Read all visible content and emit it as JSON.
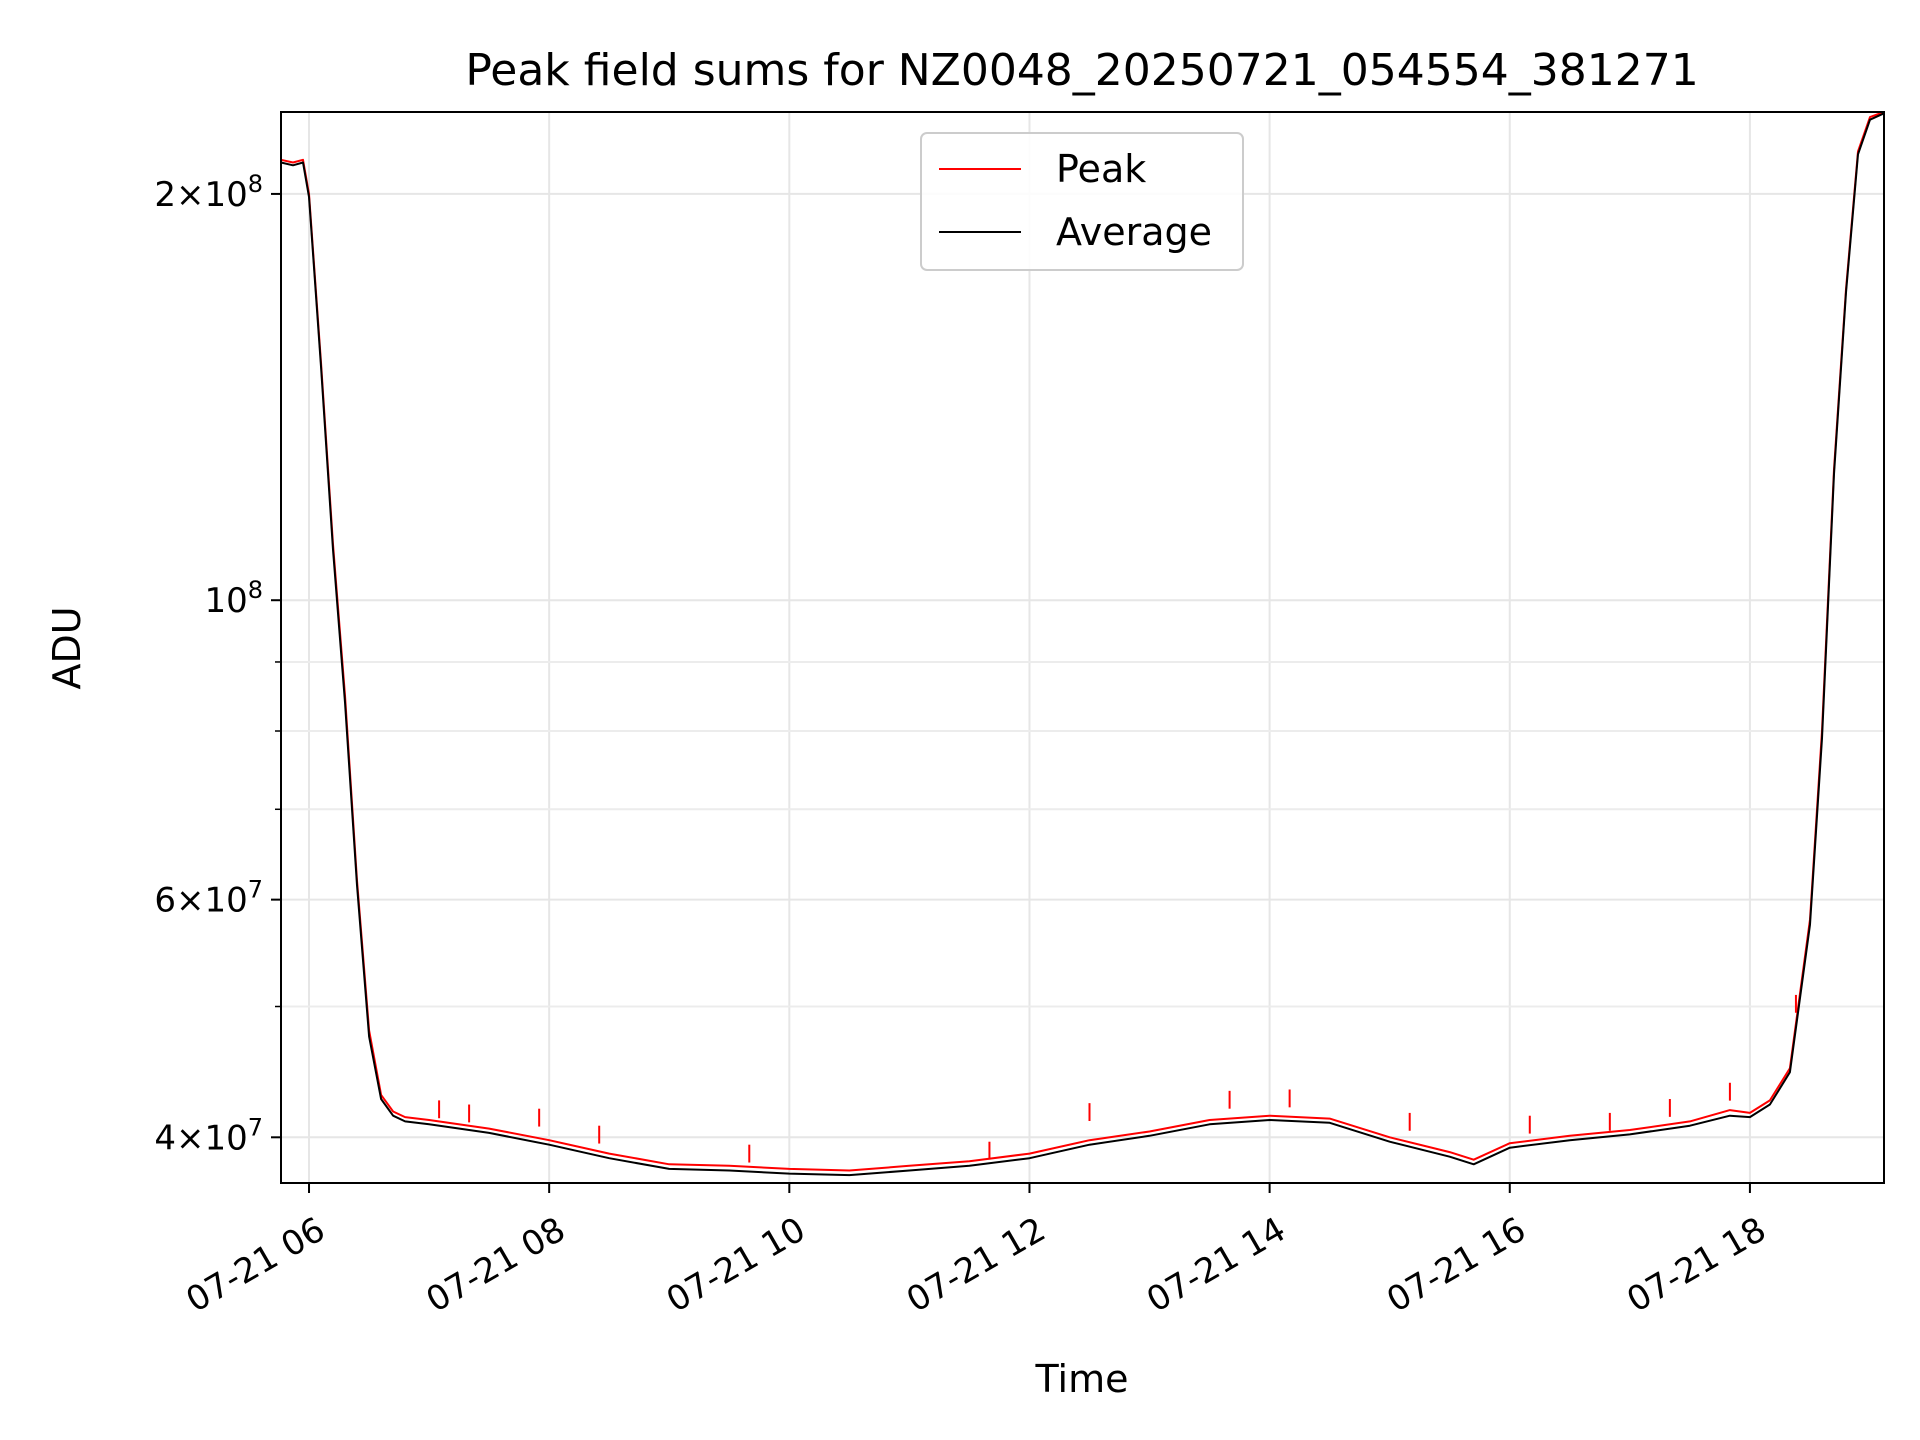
{
  "chart_data": {
    "type": "line",
    "title": "Peak field sums for NZ0048_20250721_054554_381271",
    "xlabel": "Time",
    "ylabel": "ADU",
    "y_scale": "log",
    "xlim": [
      "2025-07-21 05:46",
      "2025-07-21 19:07"
    ],
    "ylim": [
      37000000,
      230000000
    ],
    "grid": true,
    "legend_position": "upper center",
    "x_tick_labels": [
      "07-21 06",
      "07-21 08",
      "07-21 10",
      "07-21 12",
      "07-21 14",
      "07-21 16",
      "07-21 18"
    ],
    "x_ticks": [
      "2025-07-21 06:00",
      "2025-07-21 08:00",
      "2025-07-21 10:00",
      "2025-07-21 12:00",
      "2025-07-21 14:00",
      "2025-07-21 16:00",
      "2025-07-21 18:00"
    ],
    "y_major_ticks": [
      {
        "value": 40000000,
        "base": "4",
        "exp": "7"
      },
      {
        "value": 60000000,
        "base": "6",
        "exp": "7"
      },
      {
        "value": 100000000,
        "base": "",
        "exp": "8"
      },
      {
        "value": 200000000,
        "base": "2",
        "exp": "8"
      }
    ],
    "y_minor_ticks": [
      50000000,
      70000000,
      80000000,
      90000000
    ],
    "series": [
      {
        "name": "Peak",
        "color": "#ff0000",
        "x": [
          "2025-07-21 05:46",
          "2025-07-21 05:52",
          "2025-07-21 05:57",
          "2025-07-21 06:00",
          "2025-07-21 06:06",
          "2025-07-21 06:12",
          "2025-07-21 06:18",
          "2025-07-21 06:24",
          "2025-07-21 06:30",
          "2025-07-21 06:36",
          "2025-07-21 06:42",
          "2025-07-21 06:48",
          "2025-07-21 07:00",
          "2025-07-21 07:30",
          "2025-07-21 08:00",
          "2025-07-21 08:30",
          "2025-07-21 09:00",
          "2025-07-21 09:30",
          "2025-07-21 10:00",
          "2025-07-21 10:30",
          "2025-07-21 11:00",
          "2025-07-21 11:30",
          "2025-07-21 12:00",
          "2025-07-21 12:30",
          "2025-07-21 13:00",
          "2025-07-21 13:30",
          "2025-07-21 14:00",
          "2025-07-21 14:30",
          "2025-07-21 15:00",
          "2025-07-21 15:30",
          "2025-07-21 15:42",
          "2025-07-21 16:00",
          "2025-07-21 16:30",
          "2025-07-21 17:00",
          "2025-07-21 17:30",
          "2025-07-21 17:50",
          "2025-07-21 18:00",
          "2025-07-21 18:10",
          "2025-07-21 18:20",
          "2025-07-21 18:30",
          "2025-07-21 18:36",
          "2025-07-21 18:42",
          "2025-07-21 18:48",
          "2025-07-21 18:54",
          "2025-07-21 19:00",
          "2025-07-21 19:07"
        ],
        "values": [
          212000000,
          211000000,
          212000000,
          200000000,
          150000000,
          110000000,
          85000000,
          62000000,
          48000000,
          43000000,
          41800000,
          41400000,
          41200000,
          40600000,
          39800000,
          38900000,
          38200000,
          38100000,
          37900000,
          37800000,
          38100000,
          38400000,
          38900000,
          39800000,
          40400000,
          41200000,
          41500000,
          41300000,
          40000000,
          39000000,
          38500000,
          39600000,
          40100000,
          40500000,
          41100000,
          41900000,
          41700000,
          42600000,
          45000000,
          58000000,
          80000000,
          125000000,
          170000000,
          215000000,
          228000000,
          230000000
        ]
      },
      {
        "name": "Average",
        "color": "#000000",
        "x": [
          "2025-07-21 05:46",
          "2025-07-21 05:52",
          "2025-07-21 05:57",
          "2025-07-21 06:00",
          "2025-07-21 06:06",
          "2025-07-21 06:12",
          "2025-07-21 06:18",
          "2025-07-21 06:24",
          "2025-07-21 06:30",
          "2025-07-21 06:36",
          "2025-07-21 06:42",
          "2025-07-21 06:48",
          "2025-07-21 07:00",
          "2025-07-21 07:30",
          "2025-07-21 08:00",
          "2025-07-21 08:30",
          "2025-07-21 09:00",
          "2025-07-21 09:30",
          "2025-07-21 10:00",
          "2025-07-21 10:30",
          "2025-07-21 11:00",
          "2025-07-21 11:30",
          "2025-07-21 12:00",
          "2025-07-21 12:30",
          "2025-07-21 13:00",
          "2025-07-21 13:30",
          "2025-07-21 14:00",
          "2025-07-21 14:30",
          "2025-07-21 15:00",
          "2025-07-21 15:30",
          "2025-07-21 15:42",
          "2025-07-21 16:00",
          "2025-07-21 16:30",
          "2025-07-21 17:00",
          "2025-07-21 17:30",
          "2025-07-21 17:50",
          "2025-07-21 18:00",
          "2025-07-21 18:10",
          "2025-07-21 18:20",
          "2025-07-21 18:30",
          "2025-07-21 18:36",
          "2025-07-21 18:42",
          "2025-07-21 18:48",
          "2025-07-21 18:54",
          "2025-07-21 19:00",
          "2025-07-21 19:07"
        ],
        "values": [
          211000000,
          210000000,
          211000000,
          199000000,
          149000000,
          109000000,
          84000000,
          61500000,
          47500000,
          42700000,
          41500000,
          41100000,
          40900000,
          40300000,
          39500000,
          38600000,
          37900000,
          37800000,
          37600000,
          37500000,
          37800000,
          38100000,
          38600000,
          39500000,
          40100000,
          40900000,
          41200000,
          41000000,
          39700000,
          38700000,
          38200000,
          39300000,
          39800000,
          40200000,
          40800000,
          41500000,
          41400000,
          42300000,
          44700000,
          57500000,
          79000000,
          124000000,
          169000000,
          214000000,
          227000000,
          229500000
        ]
      }
    ],
    "peak_spikes": {
      "x": [
        "2025-07-21 07:05",
        "2025-07-21 07:20",
        "2025-07-21 07:55",
        "2025-07-21 08:25",
        "2025-07-21 09:40",
        "2025-07-21 11:40",
        "2025-07-21 12:30",
        "2025-07-21 13:40",
        "2025-07-21 14:10",
        "2025-07-21 15:10",
        "2025-07-21 16:10",
        "2025-07-21 16:50",
        "2025-07-21 17:20",
        "2025-07-21 17:50",
        "2025-07-21 18:23"
      ],
      "values": [
        42600000,
        42300000,
        42000000,
        40800000,
        39500000,
        39700000,
        42400000,
        43300000,
        43400000,
        41700000,
        41500000,
        41700000,
        42700000,
        43900000,
        51000000
      ]
    }
  }
}
